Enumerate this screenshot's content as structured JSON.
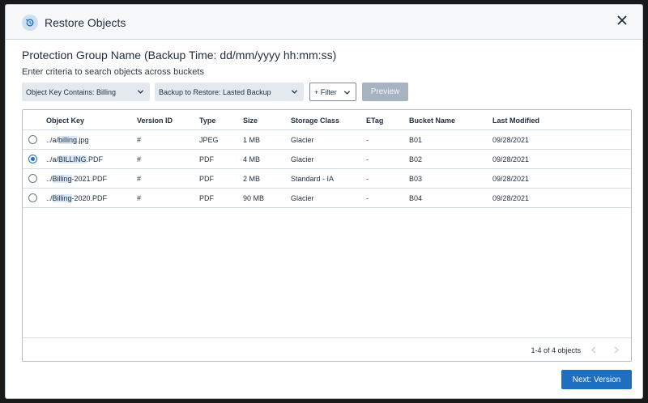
{
  "dialog": {
    "title": "Restore Objects",
    "group_name": "Protection Group Name (Backup Time: dd/mm/yyyy hh:mm:ss)",
    "hint": "Enter criteria to search objects across buckets"
  },
  "filters": {
    "key_filter": "Object Key Contains: Billing",
    "backup_filter": "Backup to Restore: Lasted Backup",
    "filter_label": "+ Filter",
    "preview_label": "Preview"
  },
  "table": {
    "columns": [
      "Object Key",
      "Version ID",
      "Type",
      "Size",
      "Storage Class",
      "ETag",
      "Bucket Name",
      "Last Modified"
    ],
    "rows": [
      {
        "prefix": "../a/",
        "match": "billing",
        "suffix": ".jpg",
        "version": "#",
        "type": "JPEG",
        "size": "1 MB",
        "storage": "Glacier",
        "etag": "-",
        "bucket": "B01",
        "modified": "09/28/2021",
        "selected": false
      },
      {
        "prefix": "../a/",
        "match": "BILLING",
        "suffix": ".PDF",
        "version": "#",
        "type": "PDF",
        "size": "4 MB",
        "storage": "Glacier",
        "etag": "-",
        "bucket": "B02",
        "modified": "09/28/2021",
        "selected": true
      },
      {
        "prefix": "../",
        "match": "Billing",
        "suffix": "-2021.PDF",
        "version": "#",
        "type": "PDF",
        "size": "2 MB",
        "storage": "Standard - IA",
        "etag": "-",
        "bucket": "B03",
        "modified": "09/28/2021",
        "selected": false
      },
      {
        "prefix": "../",
        "match": "Billing",
        "suffix": "-2020.PDF",
        "version": "#",
        "type": "PDF",
        "size": "90 MB",
        "storage": "Glacier",
        "etag": "-",
        "bucket": "B04",
        "modified": "09/28/2021",
        "selected": false
      }
    ],
    "pagination": "1-4 of 4 objects"
  },
  "footer": {
    "next_label": "Next: Version"
  },
  "colors": {
    "primary": "#1e6fbf",
    "disabled": "#a7b3c0",
    "highlight": "#dbe8f7"
  }
}
